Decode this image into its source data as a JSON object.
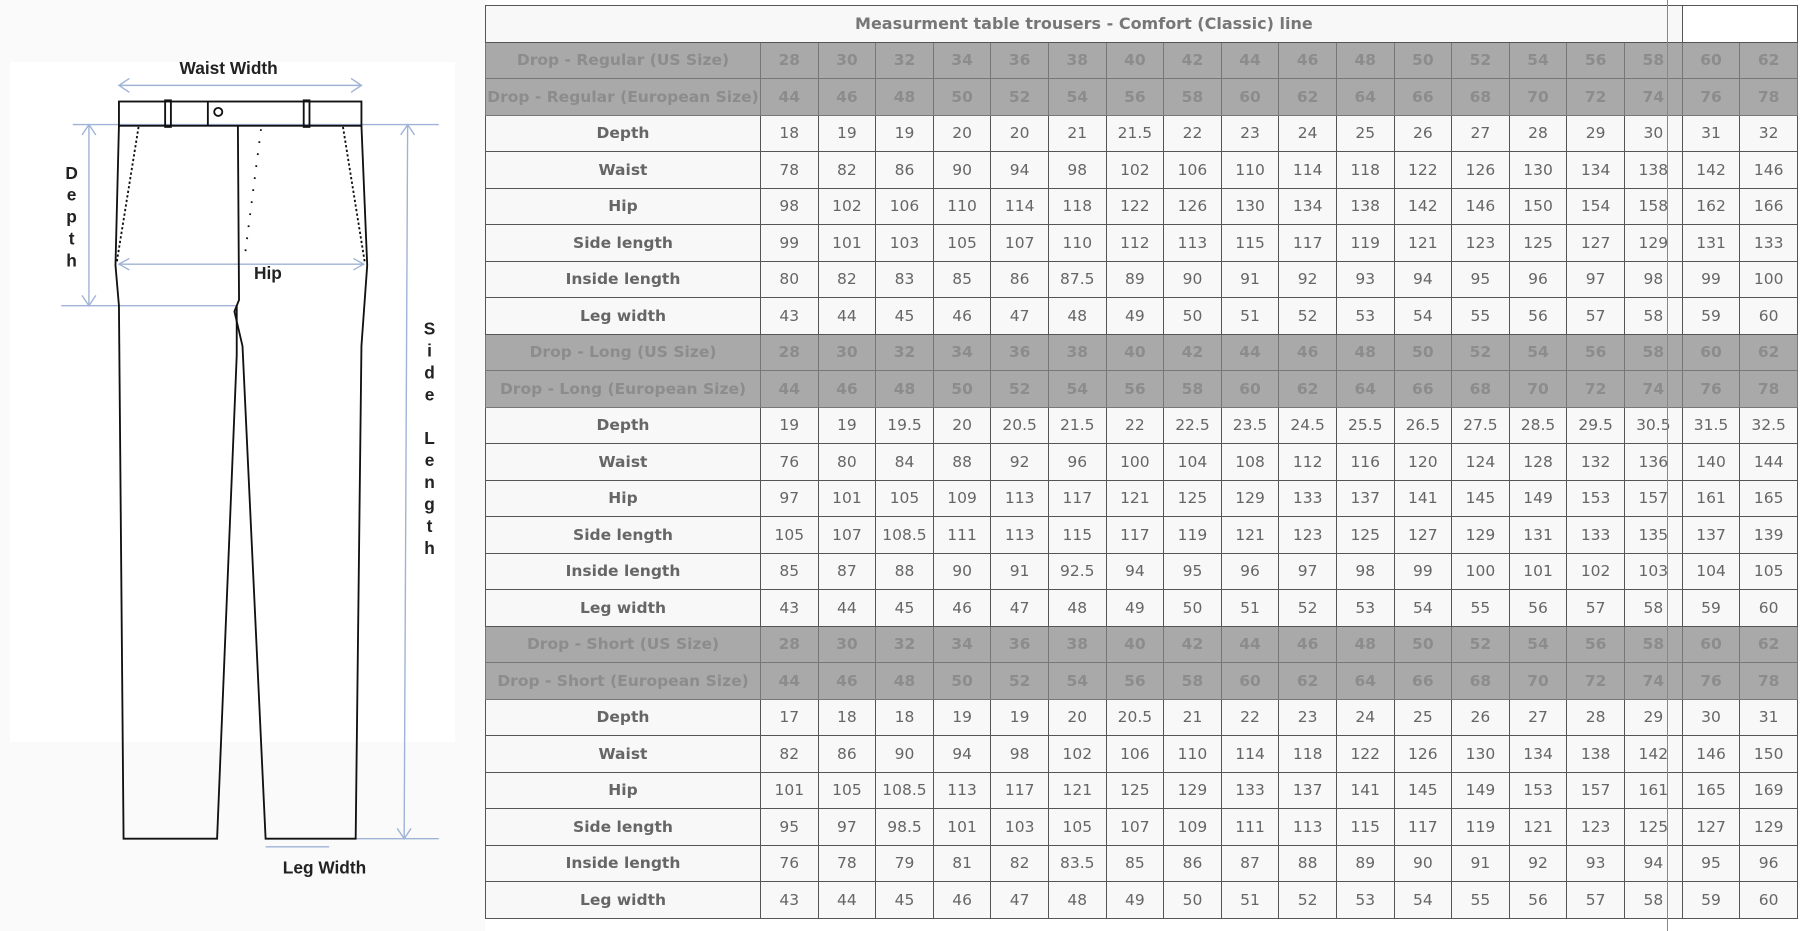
{
  "figure": {
    "labels": {
      "waist_width": "Waist Width",
      "depth": [
        "D",
        "e",
        "p",
        "t",
        "h"
      ],
      "hip": "Hip",
      "side_length": [
        "S",
        "i",
        "d",
        "e",
        "",
        "L",
        "e",
        "n",
        "g",
        "t",
        "h"
      ],
      "leg_width": "Leg Width"
    }
  },
  "table": {
    "title": "Measurment table trousers - Comfort (Classic) line",
    "colors": {
      "header_bg": "#a9a9a9",
      "header_text": "#8c8c8c",
      "body_text": "#666666",
      "border": "#555555"
    },
    "sections": [
      {
        "header_rows": [
          {
            "label": "Drop - Regular (US Size)",
            "values": [
              "28",
              "30",
              "32",
              "34",
              "36",
              "38",
              "40",
              "42",
              "44",
              "46",
              "48",
              "50",
              "52",
              "54",
              "56",
              "58",
              "60",
              "62"
            ]
          },
          {
            "label": "Drop - Regular (European Size)",
            "values": [
              "44",
              "46",
              "48",
              "50",
              "52",
              "54",
              "56",
              "58",
              "60",
              "62",
              "64",
              "66",
              "68",
              "70",
              "72",
              "74",
              "76",
              "78"
            ]
          }
        ],
        "rows": [
          {
            "label": "Depth",
            "values": [
              "18",
              "19",
              "19",
              "20",
              "20",
              "21",
              "21.5",
              "22",
              "23",
              "24",
              "25",
              "26",
              "27",
              "28",
              "29",
              "30",
              "31",
              "32"
            ]
          },
          {
            "label": "Waist",
            "values": [
              "78",
              "82",
              "86",
              "90",
              "94",
              "98",
              "102",
              "106",
              "110",
              "114",
              "118",
              "122",
              "126",
              "130",
              "134",
              "138",
              "142",
              "146"
            ]
          },
          {
            "label": "Hip",
            "values": [
              "98",
              "102",
              "106",
              "110",
              "114",
              "118",
              "122",
              "126",
              "130",
              "134",
              "138",
              "142",
              "146",
              "150",
              "154",
              "158",
              "162",
              "166"
            ]
          },
          {
            "label": "Side length",
            "values": [
              "99",
              "101",
              "103",
              "105",
              "107",
              "110",
              "112",
              "113",
              "115",
              "117",
              "119",
              "121",
              "123",
              "125",
              "127",
              "129",
              "131",
              "133"
            ]
          },
          {
            "label": "Inside length",
            "values": [
              "80",
              "82",
              "83",
              "85",
              "86",
              "87.5",
              "89",
              "90",
              "91",
              "92",
              "93",
              "94",
              "95",
              "96",
              "97",
              "98",
              "99",
              "100"
            ]
          },
          {
            "label": "Leg width",
            "values": [
              "43",
              "44",
              "45",
              "46",
              "47",
              "48",
              "49",
              "50",
              "51",
              "52",
              "53",
              "54",
              "55",
              "56",
              "57",
              "58",
              "59",
              "60"
            ]
          }
        ]
      },
      {
        "header_rows": [
          {
            "label": "Drop - Long (US Size)",
            "values": [
              "28",
              "30",
              "32",
              "34",
              "36",
              "38",
              "40",
              "42",
              "44",
              "46",
              "48",
              "50",
              "52",
              "54",
              "56",
              "58",
              "60",
              "62"
            ]
          },
          {
            "label": "Drop - Long (European Size)",
            "values": [
              "44",
              "46",
              "48",
              "50",
              "52",
              "54",
              "56",
              "58",
              "60",
              "62",
              "64",
              "66",
              "68",
              "70",
              "72",
              "74",
              "76",
              "78"
            ]
          }
        ],
        "rows": [
          {
            "label": "Depth",
            "values": [
              "19",
              "19",
              "19.5",
              "20",
              "20.5",
              "21.5",
              "22",
              "22.5",
              "23.5",
              "24.5",
              "25.5",
              "26.5",
              "27.5",
              "28.5",
              "29.5",
              "30.5",
              "31.5",
              "32.5"
            ]
          },
          {
            "label": "Waist",
            "values": [
              "76",
              "80",
              "84",
              "88",
              "92",
              "96",
              "100",
              "104",
              "108",
              "112",
              "116",
              "120",
              "124",
              "128",
              "132",
              "136",
              "140",
              "144"
            ]
          },
          {
            "label": "Hip",
            "values": [
              "97",
              "101",
              "105",
              "109",
              "113",
              "117",
              "121",
              "125",
              "129",
              "133",
              "137",
              "141",
              "145",
              "149",
              "153",
              "157",
              "161",
              "165"
            ]
          },
          {
            "label": "Side length",
            "values": [
              "105",
              "107",
              "108.5",
              "111",
              "113",
              "115",
              "117",
              "119",
              "121",
              "123",
              "125",
              "127",
              "129",
              "131",
              "133",
              "135",
              "137",
              "139"
            ]
          },
          {
            "label": "Inside length",
            "values": [
              "85",
              "87",
              "88",
              "90",
              "91",
              "92.5",
              "94",
              "95",
              "96",
              "97",
              "98",
              "99",
              "100",
              "101",
              "102",
              "103",
              "104",
              "105"
            ]
          },
          {
            "label": "Leg width",
            "values": [
              "43",
              "44",
              "45",
              "46",
              "47",
              "48",
              "49",
              "50",
              "51",
              "52",
              "53",
              "54",
              "55",
              "56",
              "57",
              "58",
              "59",
              "60"
            ]
          }
        ]
      },
      {
        "header_rows": [
          {
            "label": "Drop - Short (US Size)",
            "values": [
              "28",
              "30",
              "32",
              "34",
              "36",
              "38",
              "40",
              "42",
              "44",
              "46",
              "48",
              "50",
              "52",
              "54",
              "56",
              "58",
              "60",
              "62"
            ]
          },
          {
            "label": "Drop - Short (European Size)",
            "values": [
              "44",
              "46",
              "48",
              "50",
              "52",
              "54",
              "56",
              "58",
              "60",
              "62",
              "64",
              "66",
              "68",
              "70",
              "72",
              "74",
              "76",
              "78"
            ]
          }
        ],
        "rows": [
          {
            "label": "Depth",
            "values": [
              "17",
              "18",
              "18",
              "19",
              "19",
              "20",
              "20.5",
              "21",
              "22",
              "23",
              "24",
              "25",
              "26",
              "27",
              "28",
              "29",
              "30",
              "31"
            ]
          },
          {
            "label": "Waist",
            "values": [
              "82",
              "86",
              "90",
              "94",
              "98",
              "102",
              "106",
              "110",
              "114",
              "118",
              "122",
              "126",
              "130",
              "134",
              "138",
              "142",
              "146",
              "150"
            ]
          },
          {
            "label": "Hip",
            "values": [
              "101",
              "105",
              "108.5",
              "113",
              "117",
              "121",
              "125",
              "129",
              "133",
              "137",
              "141",
              "145",
              "149",
              "153",
              "157",
              "161",
              "165",
              "169"
            ]
          },
          {
            "label": "Side length",
            "values": [
              "95",
              "97",
              "98.5",
              "101",
              "103",
              "105",
              "107",
              "109",
              "111",
              "113",
              "115",
              "117",
              "119",
              "121",
              "123",
              "125",
              "127",
              "129"
            ]
          },
          {
            "label": "Inside length",
            "values": [
              "76",
              "78",
              "79",
              "81",
              "82",
              "83.5",
              "85",
              "86",
              "87",
              "88",
              "89",
              "90",
              "91",
              "92",
              "93",
              "94",
              "95",
              "96"
            ]
          },
          {
            "label": "Leg width",
            "values": [
              "43",
              "44",
              "45",
              "46",
              "47",
              "48",
              "49",
              "50",
              "51",
              "52",
              "53",
              "54",
              "55",
              "56",
              "57",
              "58",
              "59",
              "60"
            ]
          }
        ]
      }
    ]
  }
}
